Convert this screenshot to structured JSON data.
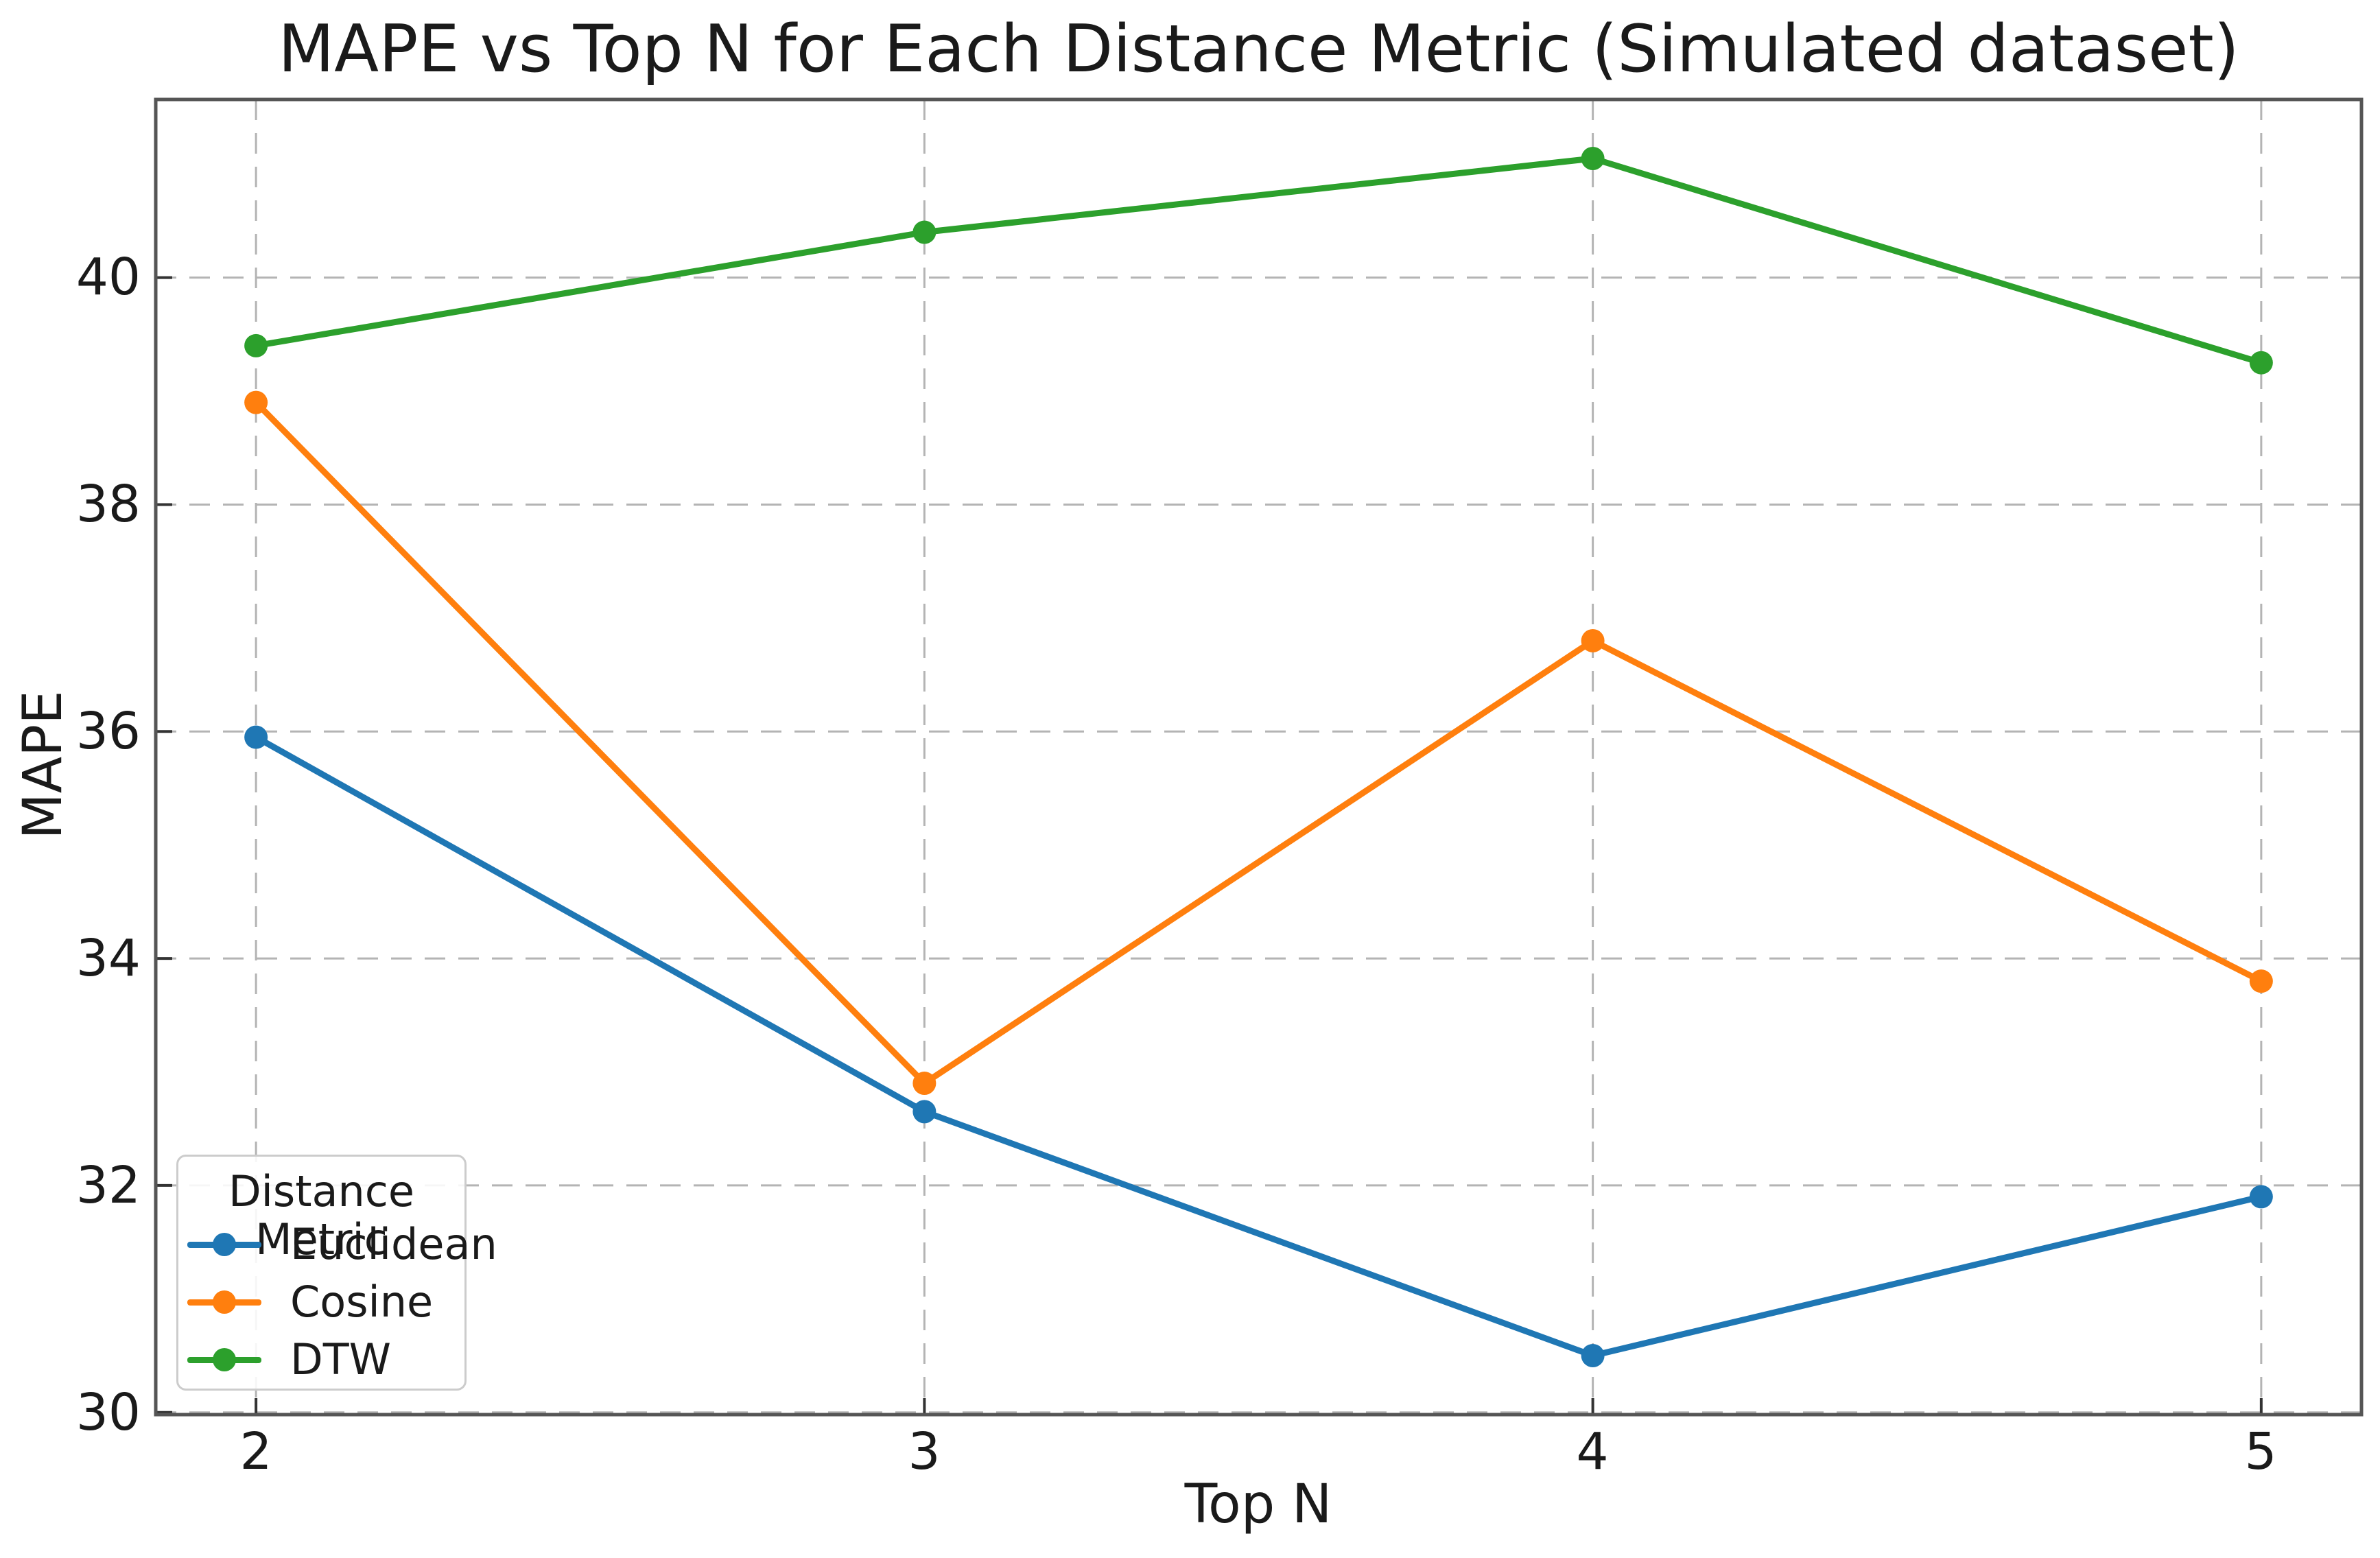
{
  "chart_data": {
    "type": "line",
    "title": "MAPE vs Top N for Each Distance Metric (Simulated dataset)",
    "xlabel": "Top N",
    "ylabel": "MAPE",
    "x": [
      2,
      3,
      4,
      5
    ],
    "x_ticks": [
      "2",
      "3",
      "4",
      "5"
    ],
    "y_ticks": [
      "30",
      "32",
      "34",
      "36",
      "38",
      "40"
    ],
    "xlim": [
      1.85,
      5.15
    ],
    "ylim": [
      29.98,
      41.57
    ],
    "grid": true,
    "grid_style": "dashed",
    "grid_color": "#b4b4b4",
    "spine_color": "#555555",
    "tick_direction": "in",
    "legend": {
      "title": "Distance Metric",
      "position": "lower left"
    },
    "series": [
      {
        "name": "Euclidean",
        "color": "#1f77b4",
        "values": [
          35.95,
          32.65,
          30.5,
          31.9
        ]
      },
      {
        "name": "Cosine",
        "color": "#ff7f0e",
        "values": [
          38.9,
          32.9,
          36.8,
          33.8
        ]
      },
      {
        "name": "DTW",
        "color": "#2ca02c",
        "values": [
          39.4,
          40.4,
          41.05,
          39.25
        ]
      }
    ]
  }
}
